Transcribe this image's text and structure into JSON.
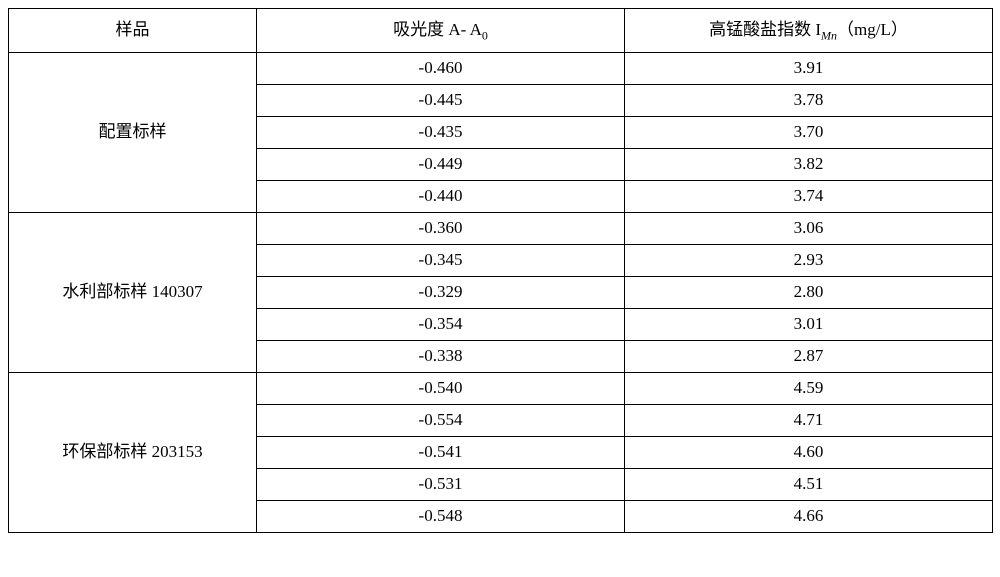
{
  "table": {
    "columns": {
      "sample": "样品",
      "absorbance_prefix": "吸光度 A- A",
      "absorbance_sub": "0",
      "imn_prefix": "高锰酸盐指数 I",
      "imn_sub": "Mn",
      "imn_suffix": "（mg/L）"
    },
    "groups": [
      {
        "label": "配置标样",
        "rows": [
          {
            "a": "-0.460",
            "i": "3.91"
          },
          {
            "a": "-0.445",
            "i": "3.78"
          },
          {
            "a": "-0.435",
            "i": "3.70"
          },
          {
            "a": "-0.449",
            "i": "3.82"
          },
          {
            "a": "-0.440",
            "i": "3.74"
          }
        ]
      },
      {
        "label": "水利部标样 140307",
        "rows": [
          {
            "a": "-0.360",
            "i": "3.06"
          },
          {
            "a": "-0.345",
            "i": "2.93"
          },
          {
            "a": "-0.329",
            "i": "2.80"
          },
          {
            "a": "-0.354",
            "i": "3.01"
          },
          {
            "a": "-0.338",
            "i": "2.87"
          }
        ]
      },
      {
        "label": "环保部标样 203153",
        "rows": [
          {
            "a": "-0.540",
            "i": "4.59"
          },
          {
            "a": "-0.554",
            "i": "4.71"
          },
          {
            "a": "-0.541",
            "i": "4.60"
          },
          {
            "a": "-0.531",
            "i": "4.51"
          },
          {
            "a": "-0.548",
            "i": "4.66"
          }
        ]
      }
    ],
    "style": {
      "border_color": "#000000",
      "background_color": "#ffffff",
      "text_color": "#000000",
      "font_size_header": 17,
      "font_size_cell": 17,
      "col_widths": {
        "sample": 248,
        "absorbance": 368,
        "imn": 368
      },
      "row_height_header": 44,
      "row_height_body": 32
    }
  }
}
